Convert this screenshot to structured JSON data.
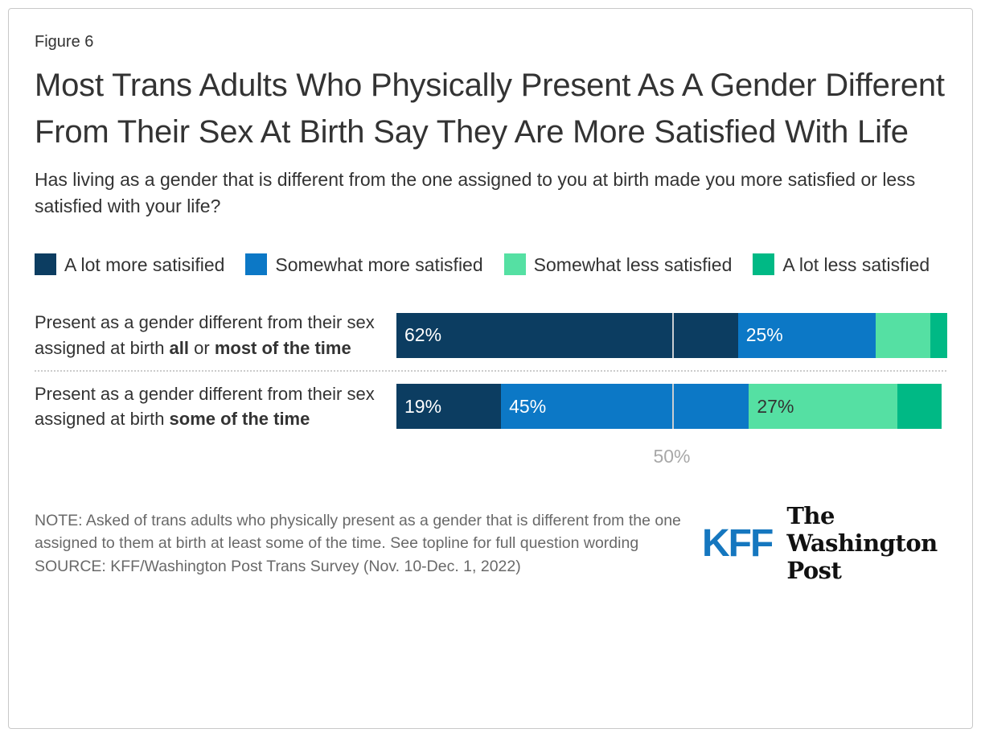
{
  "figure_label": "Figure 6",
  "title": "Most Trans Adults Who Physically Present As A Gender Different From Their Sex At Birth Say They Are More Satisfied With Life",
  "subtitle": "Has living as a gender that is different from the one assigned to you at birth made you more satisfied or less satisfied with your life?",
  "chart_data": {
    "type": "bar",
    "orientation": "horizontal-stacked",
    "xlim": [
      0,
      100
    ],
    "grid": "single-line-at-50",
    "legend_position": "top",
    "legend": [
      {
        "label": "A lot more satisified",
        "color": "#0c3d61"
      },
      {
        "label": "Somewhat more satisfied",
        "color": "#0c78c6"
      },
      {
        "label": "Somewhat less satisfied",
        "color": "#55e0a3"
      },
      {
        "label": "A lot less satisfied",
        "color": "#00b985"
      }
    ],
    "rows": [
      {
        "label_parts": [
          {
            "text": "Present as a gender different from their sex assigned at birth ",
            "bold": false
          },
          {
            "text": "all",
            "bold": true
          },
          {
            "text": " or ",
            "bold": false
          },
          {
            "text": "most of the time",
            "bold": true
          }
        ],
        "segments": [
          {
            "value": 62,
            "label": "62%"
          },
          {
            "value": 25,
            "label": "25%"
          },
          {
            "value": 10,
            "label": ""
          },
          {
            "value": 3,
            "label": ""
          }
        ]
      },
      {
        "label_parts": [
          {
            "text": "Present as a gender different from their sex assigned at birth ",
            "bold": false
          },
          {
            "text": "some of the time",
            "bold": true
          }
        ],
        "segments": [
          {
            "value": 19,
            "label": "19%"
          },
          {
            "value": 45,
            "label": "45%"
          },
          {
            "value": 27,
            "label": "27%"
          },
          {
            "value": 8,
            "label": ""
          }
        ]
      }
    ],
    "x_axis": {
      "ticks": [
        {
          "value": 50,
          "label": "50%"
        }
      ]
    }
  },
  "footer": {
    "note": "NOTE: Asked of trans adults who physically present as a gender that is different from the one assigned to them at birth at least some of the time. See topline for full question wording",
    "source": "SOURCE: KFF/Washington Post Trans Survey (Nov. 10-Dec. 1, 2022)",
    "logos": {
      "kff": "KFF",
      "wapo": "The Washington Post"
    }
  }
}
